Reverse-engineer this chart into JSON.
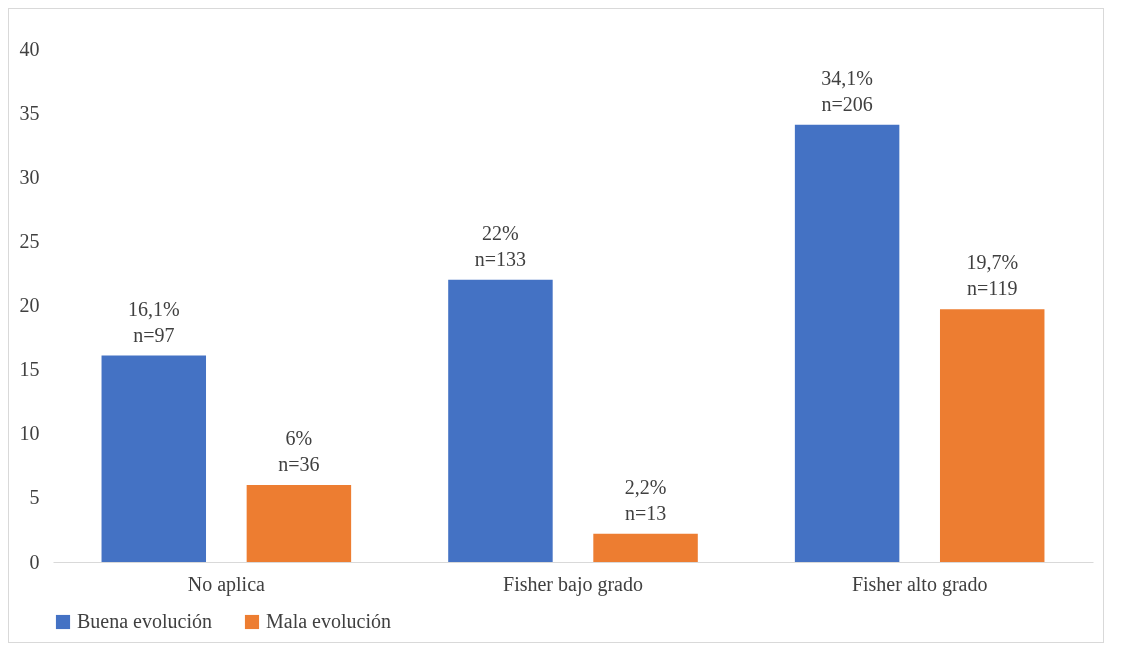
{
  "chart_data": {
    "type": "bar",
    "categories": [
      "No aplica",
      "Fisher bajo grado",
      "Fisher alto grado"
    ],
    "series": [
      {
        "name": "Buena evolución",
        "color": "#4472c4",
        "values": [
          16.1,
          22,
          34.1
        ],
        "value_labels": [
          "16,1%\nn=97",
          "22%\nn=133",
          "34,1%\nn=206"
        ]
      },
      {
        "name": "Mala evolución",
        "color": "#ed7d31",
        "values": [
          6,
          2.2,
          19.7
        ],
        "value_labels": [
          "6%\nn=36",
          "2,2%\nn=13",
          "19,7%\nn=119"
        ]
      }
    ],
    "ylim": [
      0,
      40
    ],
    "yticks": [
      0,
      5,
      10,
      15,
      20,
      25,
      30,
      35,
      40
    ],
    "grid": false,
    "legend": "bottom"
  }
}
